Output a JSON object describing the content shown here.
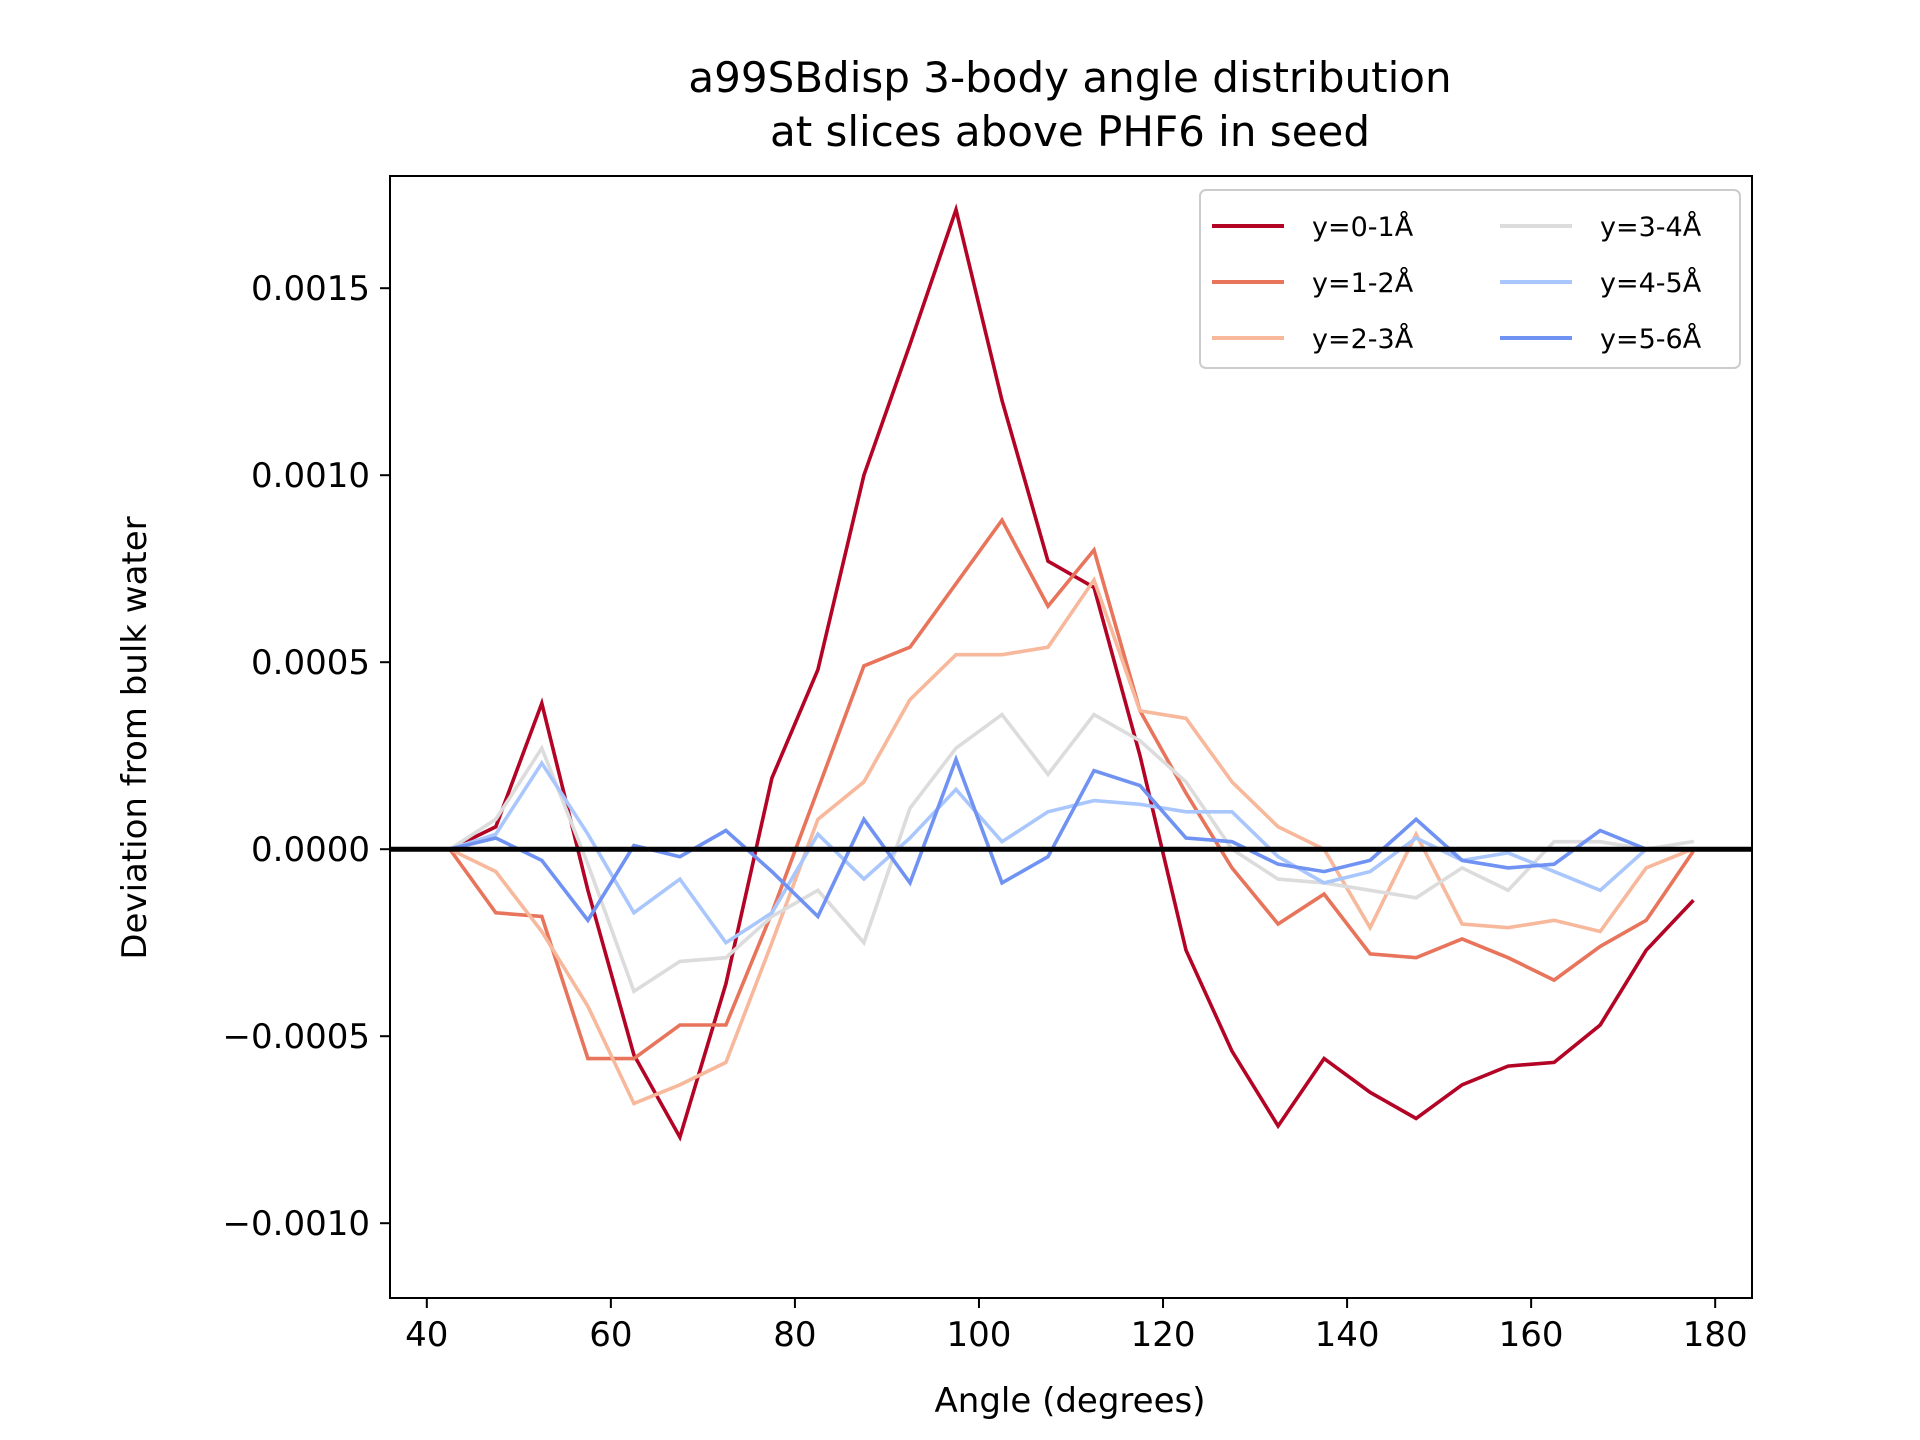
{
  "chart_data": {
    "type": "line",
    "title_lines": [
      "a99SBdisp 3-body angle distribution",
      "at slices above PHF6 in seed"
    ],
    "xlabel": "Angle (degrees)",
    "ylabel": "Deviation from bulk water",
    "xlim": [
      36,
      184
    ],
    "ylim": [
      -0.0012,
      0.0018
    ],
    "xticks": [
      40,
      60,
      80,
      100,
      120,
      140,
      160,
      180
    ],
    "xtick_labels": [
      "40",
      "60",
      "80",
      "100",
      "120",
      "140",
      "160",
      "180"
    ],
    "yticks": [
      -0.001,
      -0.0005,
      0.0,
      0.0005,
      0.001,
      0.0015
    ],
    "ytick_labels": [
      "−0.0010",
      "−0.0005",
      "0.0000",
      "0.0005",
      "0.0010",
      "0.0015"
    ],
    "grid": false,
    "legend_position": "top-right",
    "reference_line": 0,
    "x": [
      42.5,
      47.5,
      52.5,
      57.5,
      62.5,
      67.5,
      72.5,
      77.5,
      82.5,
      87.5,
      92.5,
      97.5,
      102.5,
      107.5,
      112.5,
      117.5,
      122.5,
      127.5,
      132.5,
      137.5,
      142.5,
      147.5,
      152.5,
      157.5,
      162.5,
      167.5,
      172.5,
      177.5
    ],
    "series": [
      {
        "name": "y=0-1Å",
        "color": "#b40426",
        "values": [
          0.0,
          6e-05,
          0.00039,
          -0.00011,
          -0.00055,
          -0.00077,
          -0.00036,
          0.00019,
          0.00048,
          0.001,
          0.00135,
          0.00171,
          0.0012,
          0.00077,
          0.0007,
          0.00025,
          -0.00027,
          -0.00054,
          -0.00074,
          -0.00056,
          -0.00065,
          -0.00072,
          -0.00063,
          -0.00058,
          -0.00057,
          -0.00047,
          -0.00027,
          -0.00014
        ]
      },
      {
        "name": "y=1-2Å",
        "color": "#e7745b",
        "values": [
          0.0,
          -0.00017,
          -0.00018,
          -0.00056,
          -0.00056,
          -0.00047,
          -0.00047,
          -0.00017,
          0.00016,
          0.00049,
          0.00054,
          0.00071,
          0.00088,
          0.00065,
          0.0008,
          0.00037,
          0.00015,
          -5e-05,
          -0.0002,
          -0.00012,
          -0.00028,
          -0.00029,
          -0.00024,
          -0.00029,
          -0.00035,
          -0.00026,
          -0.00019,
          -1e-05
        ]
      },
      {
        "name": "y=2-3Å",
        "color": "#f7b89c",
        "values": [
          0.0,
          -6e-05,
          -0.00022,
          -0.00042,
          -0.00068,
          -0.00063,
          -0.00057,
          -0.00025,
          8e-05,
          0.00018,
          0.0004,
          0.00052,
          0.00052,
          0.00054,
          0.00072,
          0.00037,
          0.00035,
          0.00018,
          6e-05,
          0.0,
          -0.00021,
          4e-05,
          -0.0002,
          -0.00021,
          -0.00019,
          -0.00022,
          -5e-05,
          0.0
        ]
      },
      {
        "name": "y=3-4Å",
        "color": "#dddcdc",
        "values": [
          0.0,
          8e-05,
          0.00027,
          -4e-05,
          -0.00038,
          -0.0003,
          -0.00029,
          -0.00018,
          -0.00011,
          -0.00025,
          0.00011,
          0.00027,
          0.00036,
          0.0002,
          0.00036,
          0.00029,
          0.00018,
          0.0,
          -8e-05,
          -9e-05,
          -0.00011,
          -0.00013,
          -5e-05,
          -0.00011,
          2e-05,
          2e-05,
          0.0,
          2e-05
        ]
      },
      {
        "name": "y=4-5Å",
        "color": "#aac7fd",
        "values": [
          0.0,
          4e-05,
          0.00023,
          4e-05,
          -0.00017,
          -8e-05,
          -0.00025,
          -0.00017,
          4e-05,
          -8e-05,
          3e-05,
          0.00016,
          2e-05,
          0.0001,
          0.00013,
          0.00012,
          0.0001,
          0.0001,
          -2e-05,
          -9e-05,
          -6e-05,
          3e-05,
          -3e-05,
          -1e-05,
          -6e-05,
          -0.00011,
          0.0,
          0.0
        ]
      },
      {
        "name": "y=5-6Å",
        "color": "#6f92f3",
        "values": [
          0.0,
          3e-05,
          -3e-05,
          -0.00019,
          1e-05,
          -2e-05,
          5e-05,
          -6e-05,
          -0.00018,
          8e-05,
          -9e-05,
          0.00024,
          -9e-05,
          -2e-05,
          0.00021,
          0.00017,
          3e-05,
          2e-05,
          -4e-05,
          -6e-05,
          -3e-05,
          8e-05,
          -3e-05,
          -5e-05,
          -4e-05,
          5e-05,
          0.0,
          0.0
        ]
      }
    ]
  }
}
